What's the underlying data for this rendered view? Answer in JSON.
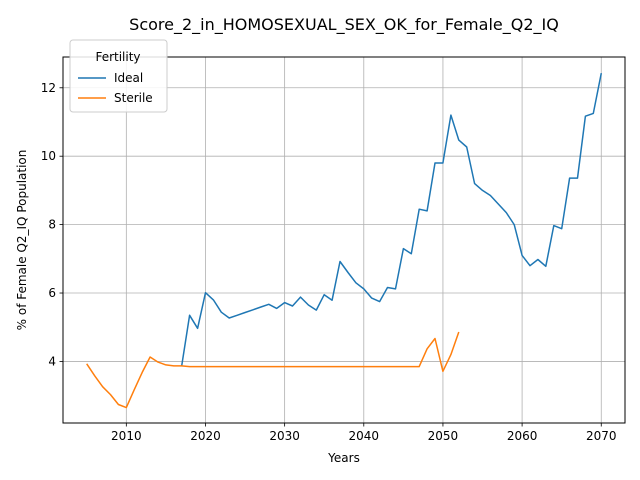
{
  "chart_data": {
    "type": "line",
    "title": "Score_2_in_HOMOSEXUAL_SEX_OK_for_Female_Q2_IQ",
    "xlabel": "Years",
    "ylabel": "% of Female Q2_IQ Population",
    "xlim": [
      2002,
      2073
    ],
    "ylim": [
      2.2,
      12.9
    ],
    "x_ticks": [
      2010,
      2020,
      2030,
      2040,
      2050,
      2060,
      2070
    ],
    "y_ticks": [
      4,
      6,
      8,
      10,
      12
    ],
    "grid": true,
    "legend": {
      "title": "Fertility",
      "position": "top-left"
    },
    "series": [
      {
        "name": "Ideal",
        "color": "#1f77b4",
        "x": [
          2017,
          2018,
          2019,
          2020,
          2021,
          2022,
          2023,
          2024,
          2025,
          2026,
          2027,
          2028,
          2029,
          2030,
          2031,
          2032,
          2033,
          2034,
          2035,
          2036,
          2037,
          2038,
          2039,
          2040,
          2041,
          2042,
          2043,
          2044,
          2045,
          2046,
          2047,
          2048,
          2049,
          2050,
          2051,
          2052,
          2053,
          2054,
          2055,
          2056,
          2057,
          2058,
          2059,
          2060,
          2061,
          2062,
          2063,
          2064,
          2065,
          2066,
          2067,
          2068,
          2069,
          2070
        ],
        "values": [
          3.87,
          5.35,
          4.97,
          6.01,
          5.8,
          5.44,
          5.27,
          5.35,
          5.43,
          5.51,
          5.59,
          5.67,
          5.55,
          5.72,
          5.62,
          5.88,
          5.65,
          5.5,
          5.95,
          5.79,
          6.92,
          6.6,
          6.3,
          6.12,
          5.85,
          5.75,
          6.16,
          6.12,
          7.3,
          7.15,
          8.45,
          8.4,
          9.8,
          9.8,
          11.2,
          10.47,
          10.27,
          9.2,
          9.0,
          8.85,
          8.6,
          8.35,
          8.0,
          7.1,
          6.8,
          6.98,
          6.78,
          7.97,
          7.88,
          9.36,
          9.36,
          11.17,
          11.25,
          12.43
        ]
      },
      {
        "name": "Sterile",
        "color": "#ff7f0e",
        "x": [
          2005,
          2006,
          2007,
          2008,
          2009,
          2010,
          2011,
          2012,
          2013,
          2014,
          2015,
          2016,
          2017,
          2018,
          2019,
          2020,
          2025,
          2030,
          2035,
          2040,
          2045,
          2047,
          2048,
          2049,
          2050,
          2051,
          2052
        ],
        "values": [
          3.93,
          3.58,
          3.26,
          3.03,
          2.74,
          2.65,
          3.17,
          3.68,
          4.13,
          3.98,
          3.9,
          3.87,
          3.87,
          3.85,
          3.85,
          3.85,
          3.85,
          3.85,
          3.85,
          3.85,
          3.85,
          3.85,
          4.37,
          4.67,
          3.71,
          4.2,
          4.86
        ]
      }
    ]
  }
}
